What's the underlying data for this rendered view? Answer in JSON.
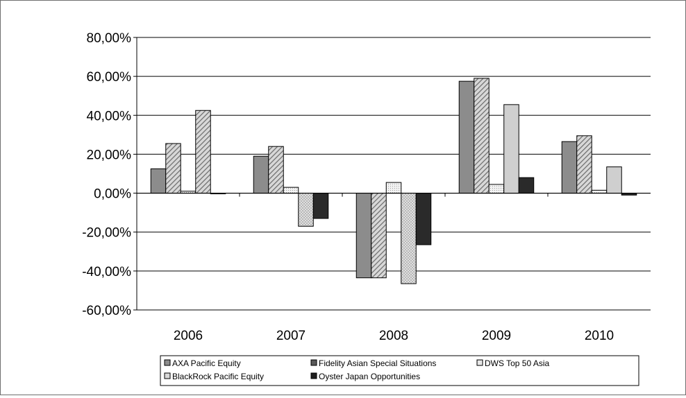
{
  "chart_data": {
    "type": "bar",
    "categories": [
      "2006",
      "2007",
      "2008",
      "2009",
      "2010"
    ],
    "ylim": [
      -0.6,
      0.8
    ],
    "yticks": [
      0.8,
      0.6,
      0.4,
      0.2,
      0.0,
      -0.2,
      -0.4,
      -0.6
    ],
    "ytick_labels": [
      "80,00%",
      "60,00%",
      "40,00%",
      "20,00%",
      "0,00%",
      "-20,00%",
      "-40,00%",
      "-60,00%"
    ],
    "grid": true,
    "legend_position": "bottom",
    "series": [
      {
        "name": "AXA Pacific Equity",
        "values": [
          0.125,
          0.19,
          -0.435,
          0.575,
          0.265
        ],
        "color": "#8c8c8c",
        "pattern": "solid"
      },
      {
        "name": "Fidelity Asian Special Situations",
        "values": [
          0.255,
          0.24,
          -0.435,
          0.59,
          0.295
        ],
        "color": "#a8a8a8",
        "pattern": "diagonal"
      },
      {
        "name": "DWS Top 50 Asia",
        "values": [
          0.01,
          0.03,
          0.055,
          0.045,
          0.015
        ],
        "color": "#e6e6e6",
        "pattern": "dots"
      },
      {
        "name": "BlackRock Pacific Equity",
        "values": [
          0.425,
          -0.17,
          -0.465,
          0.455,
          0.135
        ],
        "color": "#cfcfcf",
        "pattern": "varied"
      },
      {
        "name": "Oyster Japan Opportunities",
        "values": [
          -0.003,
          -0.13,
          -0.265,
          0.08,
          -0.01
        ],
        "color": "#2a2a2a",
        "pattern": "solid"
      }
    ],
    "legend_order": [
      0,
      1,
      2,
      3,
      4
    ],
    "legend_swatch_colors": [
      "#8c8c8c",
      "#595959",
      "#d9d9d9",
      "#d9d9d9",
      "#1e1e1e"
    ]
  }
}
